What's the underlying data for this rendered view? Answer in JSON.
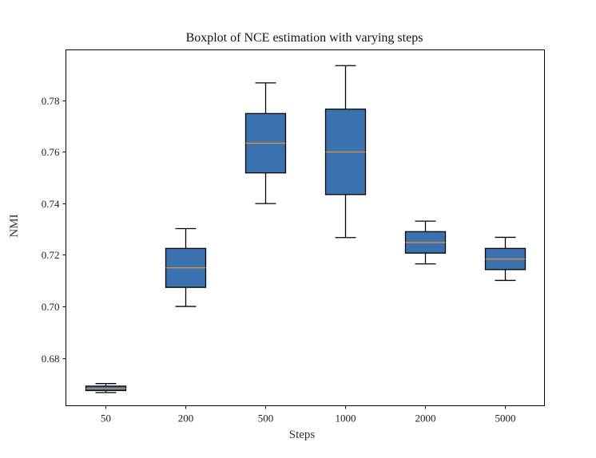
{
  "chart_data": {
    "type": "boxplot",
    "title": "Boxplot of NCE estimation with varying steps",
    "xlabel": "Steps",
    "ylabel": "NMI",
    "categories": [
      "50",
      "200",
      "500",
      "1000",
      "2000",
      "5000"
    ],
    "ylim": [
      0.6615,
      0.7995
    ],
    "yticks": [
      "0.68",
      "0.70",
      "0.72",
      "0.74",
      "0.76",
      "0.78"
    ],
    "ytick_values": [
      0.68,
      0.7,
      0.72,
      0.74,
      0.76,
      0.78
    ],
    "grid": false,
    "legend": null,
    "box_color": "#3a72b0",
    "median_color": "#e8902a",
    "boxes": [
      {
        "label": "50",
        "whisker_low": 0.6666,
        "q1": 0.6674,
        "median": 0.6682,
        "q3": 0.6691,
        "whisker_high": 0.6701
      },
      {
        "label": "200",
        "whisker_low": 0.7,
        "q1": 0.7074,
        "median": 0.715,
        "q3": 0.7225,
        "whisker_high": 0.7302
      },
      {
        "label": "500",
        "whisker_low": 0.7399,
        "q1": 0.7518,
        "median": 0.7633,
        "q3": 0.7748,
        "whisker_high": 0.7867
      },
      {
        "label": "1000",
        "whisker_low": 0.7267,
        "q1": 0.7434,
        "median": 0.7599,
        "q3": 0.7765,
        "whisker_high": 0.7934
      },
      {
        "label": "2000",
        "whisker_low": 0.7165,
        "q1": 0.7207,
        "median": 0.7248,
        "q3": 0.729,
        "whisker_high": 0.7331
      },
      {
        "label": "5000",
        "whisker_low": 0.7101,
        "q1": 0.7143,
        "median": 0.7184,
        "q3": 0.7225,
        "whisker_high": 0.7268
      }
    ]
  }
}
